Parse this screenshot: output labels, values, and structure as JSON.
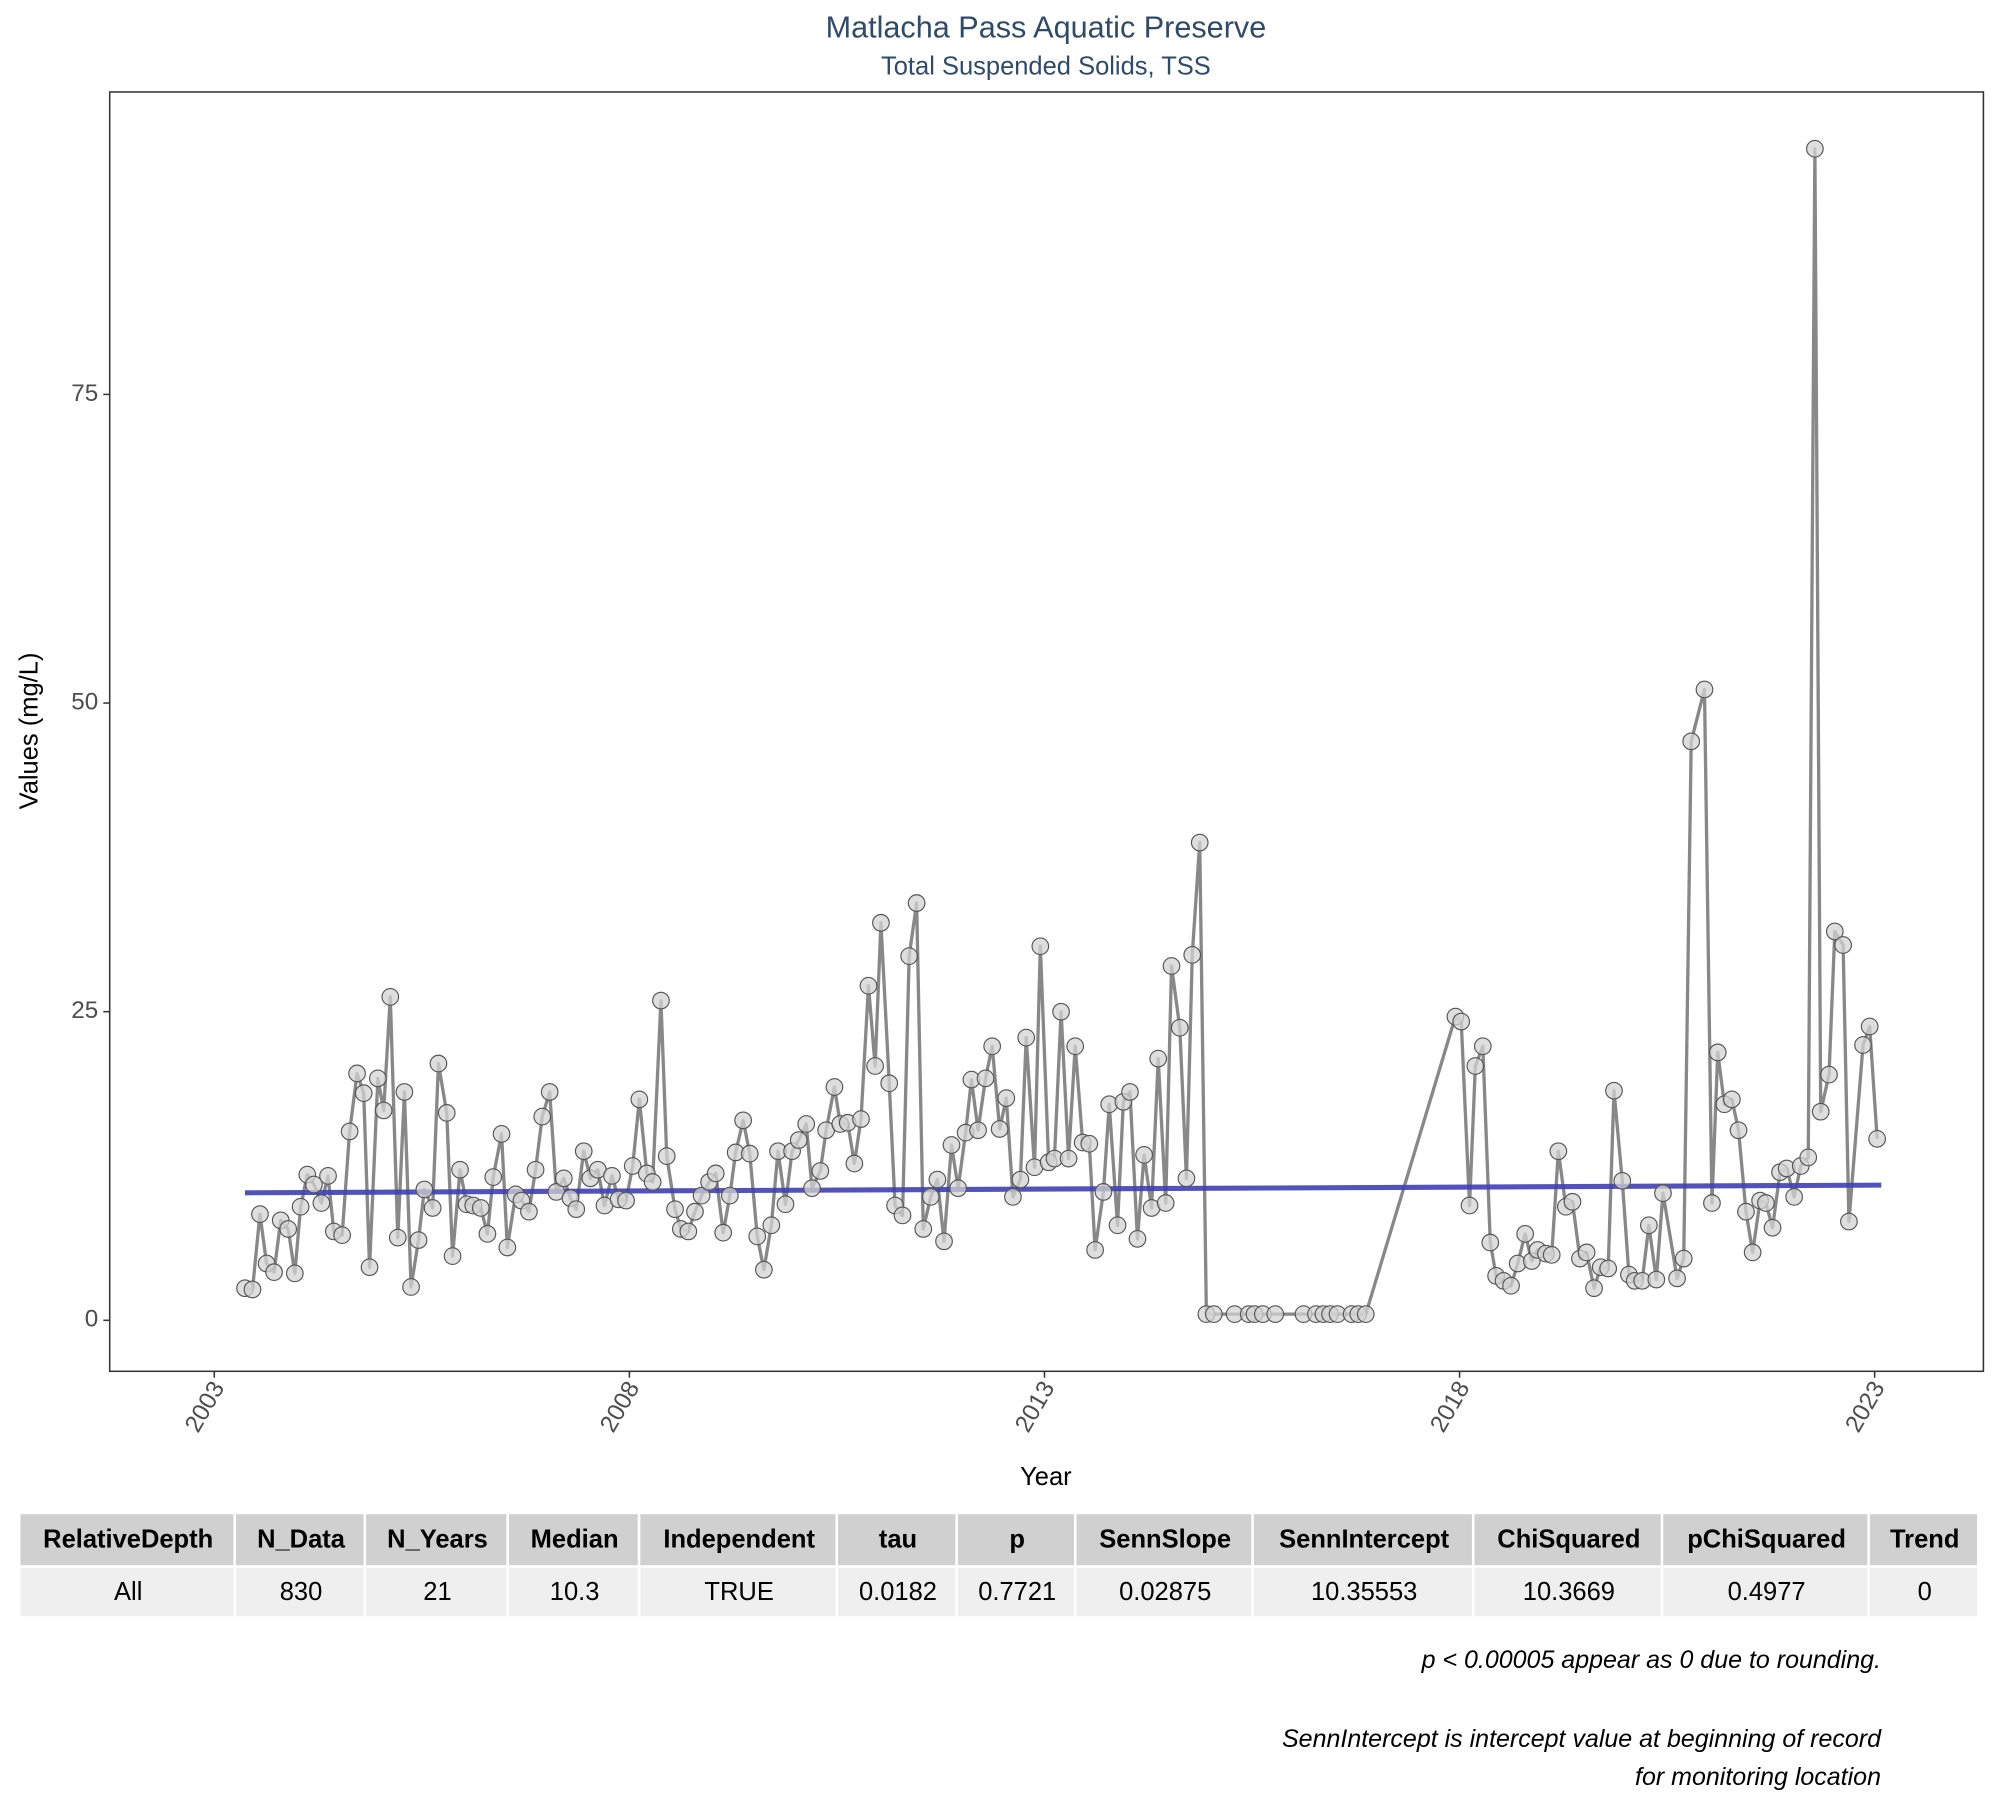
{
  "chart_data": {
    "type": "line",
    "title": "Matlacha Pass Aquatic Preserve",
    "subtitle": "Total Suspended Solids, TSS",
    "x_label": "Year",
    "y_label": "Values (mg/L)",
    "color": "#888888",
    "marker_color": "#d3d3d3",
    "x": [
      2003.37,
      2003.46,
      2003.55,
      2003.63,
      2003.72,
      2003.8,
      2003.89,
      2003.97,
      2004.04,
      2004.12,
      2004.2,
      2004.29,
      2004.37,
      2004.44,
      2004.54,
      2004.63,
      2004.72,
      2004.8,
      2004.87,
      2004.97,
      2005.04,
      2005.12,
      2005.21,
      2005.29,
      2005.37,
      2005.46,
      2005.53,
      2005.63,
      2005.7,
      2005.8,
      2005.87,
      2005.96,
      2006.04,
      2006.12,
      2006.21,
      2006.29,
      2006.36,
      2006.46,
      2006.53,
      2006.63,
      2006.7,
      2006.79,
      2006.87,
      2006.95,
      2007.04,
      2007.12,
      2007.21,
      2007.29,
      2007.36,
      2007.45,
      2007.53,
      2007.62,
      2007.7,
      2007.79,
      2007.87,
      2007.96,
      2008.04,
      2008.12,
      2008.21,
      2008.28,
      2008.38,
      2008.45,
      2008.55,
      2008.62,
      2008.71,
      2008.79,
      2008.87,
      2008.96,
      2009.04,
      2009.13,
      2009.21,
      2009.28,
      2009.37,
      2009.45,
      2009.54,
      2009.62,
      2009.71,
      2009.79,
      2009.88,
      2009.96,
      2010.04,
      2010.13,
      2010.2,
      2010.3,
      2010.37,
      2010.47,
      2010.54,
      2010.63,
      2010.71,
      2010.79,
      2010.88,
      2010.96,
      2011.03,
      2011.13,
      2011.2,
      2011.29,
      2011.37,
      2011.46,
      2011.54,
      2011.63,
      2011.71,
      2011.79,
      2011.88,
      2011.96,
      2012.05,
      2012.12,
      2012.2,
      2012.29,
      2012.37,
      2012.46,
      2012.54,
      2012.62,
      2012.71,
      2012.78,
      2012.88,
      2012.95,
      2013.05,
      2013.12,
      2013.2,
      2013.29,
      2013.37,
      2013.46,
      2013.54,
      2013.61,
      2013.71,
      2013.78,
      2013.88,
      2013.95,
      2014.03,
      2014.12,
      2014.2,
      2014.29,
      2014.37,
      2014.46,
      2014.53,
      2014.63,
      2014.71,
      2014.78,
      2014.87,
      2014.95,
      2015.04,
      2015.29,
      2015.46,
      2015.53,
      2015.63,
      2015.78,
      2016.12,
      2016.27,
      2016.36,
      2016.44,
      2016.53,
      2016.7,
      2016.78,
      2016.87,
      2017.95,
      2018.02,
      2018.12,
      2018.19,
      2018.28,
      2018.37,
      2018.44,
      2018.53,
      2018.62,
      2018.7,
      2018.79,
      2018.87,
      2018.94,
      2019.04,
      2019.11,
      2019.19,
      2019.28,
      2019.36,
      2019.45,
      2019.53,
      2019.62,
      2019.7,
      2019.79,
      2019.86,
      2019.96,
      2020.04,
      2020.11,
      2020.2,
      2020.28,
      2020.37,
      2020.45,
      2020.62,
      2020.7,
      2020.79,
      2020.95,
      2021.04,
      2021.11,
      2021.19,
      2021.28,
      2021.36,
      2021.45,
      2021.53,
      2021.62,
      2021.69,
      2021.77,
      2021.86,
      2021.94,
      2022.03,
      2022.11,
      2022.2,
      2022.28,
      2022.35,
      2022.45,
      2022.52,
      2022.62,
      2022.69,
      2022.86,
      2022.94,
      2023.03
    ],
    "values": [
      2.6,
      2.5,
      8.6,
      4.6,
      3.9,
      8.1,
      7.4,
      3.8,
      9.2,
      11.8,
      11.0,
      9.5,
      11.7,
      7.2,
      6.9,
      15.3,
      20.0,
      18.4,
      4.3,
      19.6,
      17.0,
      26.2,
      6.7,
      18.5,
      2.7,
      6.5,
      10.6,
      9.1,
      20.8,
      16.8,
      5.2,
      12.2,
      9.4,
      9.3,
      9.1,
      7.0,
      11.6,
      15.1,
      5.9,
      10.2,
      9.7,
      8.8,
      12.2,
      16.5,
      18.5,
      10.4,
      11.5,
      9.9,
      9.0,
      13.7,
      11.5,
      12.2,
      9.3,
      11.7,
      9.8,
      9.7,
      12.5,
      17.9,
      11.9,
      11.2,
      25.9,
      13.3,
      9.0,
      7.4,
      7.2,
      8.8,
      10.1,
      11.2,
      11.9,
      7.1,
      10.1,
      13.6,
      16.2,
      13.5,
      6.8,
      4.1,
      7.7,
      13.7,
      9.4,
      13.7,
      14.6,
      15.9,
      10.7,
      12.1,
      15.4,
      18.9,
      15.9,
      16.0,
      12.7,
      16.3,
      27.1,
      20.6,
      32.2,
      19.2,
      9.3,
      8.5,
      29.5,
      33.8,
      7.4,
      10.0,
      11.4,
      6.4,
      14.2,
      10.7,
      15.2,
      19.5,
      15.4,
      19.6,
      22.2,
      15.5,
      18.0,
      10.0,
      11.4,
      22.9,
      12.4,
      30.3,
      12.8,
      13.1,
      25.0,
      13.1,
      22.2,
      14.4,
      14.3,
      5.7,
      10.4,
      17.5,
      7.7,
      17.7,
      18.5,
      6.6,
      13.4,
      9.1,
      21.2,
      9.5,
      28.7,
      23.7,
      11.5,
      29.6,
      38.7,
      0.5,
      0.5,
      0.5,
      0.5,
      0.5,
      0.5,
      0.5,
      0.5,
      0.5,
      0.5,
      0.5,
      0.5,
      0.5,
      0.5,
      0.5,
      24.6,
      24.2,
      9.3,
      20.6,
      22.2,
      6.3,
      3.6,
      3.2,
      2.8,
      4.6,
      7.0,
      4.8,
      5.7,
      5.4,
      5.3,
      13.7,
      9.2,
      9.6,
      5.0,
      5.5,
      2.6,
      4.3,
      4.2,
      18.6,
      11.3,
      3.7,
      3.2,
      3.2,
      7.7,
      3.3,
      10.3,
      3.4,
      5.0,
      46.9,
      51.1,
      9.5,
      21.7,
      17.5,
      17.9,
      15.4,
      8.8,
      5.5,
      9.7,
      9.5,
      7.5,
      12.0,
      12.3,
      10.0,
      12.5,
      13.2,
      94.9,
      16.9,
      19.9,
      31.5,
      30.4,
      8.0,
      22.3,
      23.8,
      14.7
    ],
    "trend": {
      "color": "#3f3fb5",
      "x": [
        2003.37,
        2023.08
      ],
      "values": [
        10.33,
        10.95
      ]
    },
    "xlim": [
      2001.74,
      2024.31
    ],
    "ylim": [
      -4.13,
      99.5
    ],
    "xticks": [
      2003,
      2008,
      2013,
      2018,
      2023
    ],
    "yticks": [
      0,
      25,
      50,
      75
    ],
    "grid": false
  },
  "table": {
    "columns": [
      "RelativeDepth",
      "N_Data",
      "N_Years",
      "Median",
      "Independent",
      "tau",
      "p",
      "SennSlope",
      "SennIntercept",
      "ChiSquared",
      "pChiSquared",
      "Trend"
    ],
    "rows": [
      [
        "All",
        830,
        21,
        10.3,
        "TRUE",
        0.0182,
        0.7721,
        0.02875,
        10.35553,
        10.3669,
        0.4977,
        0
      ]
    ]
  },
  "notes": [
    "p < 0.00005 appear as 0 due to rounding.",
    "SennIntercept is intercept value at beginning of record for monitoring location"
  ]
}
